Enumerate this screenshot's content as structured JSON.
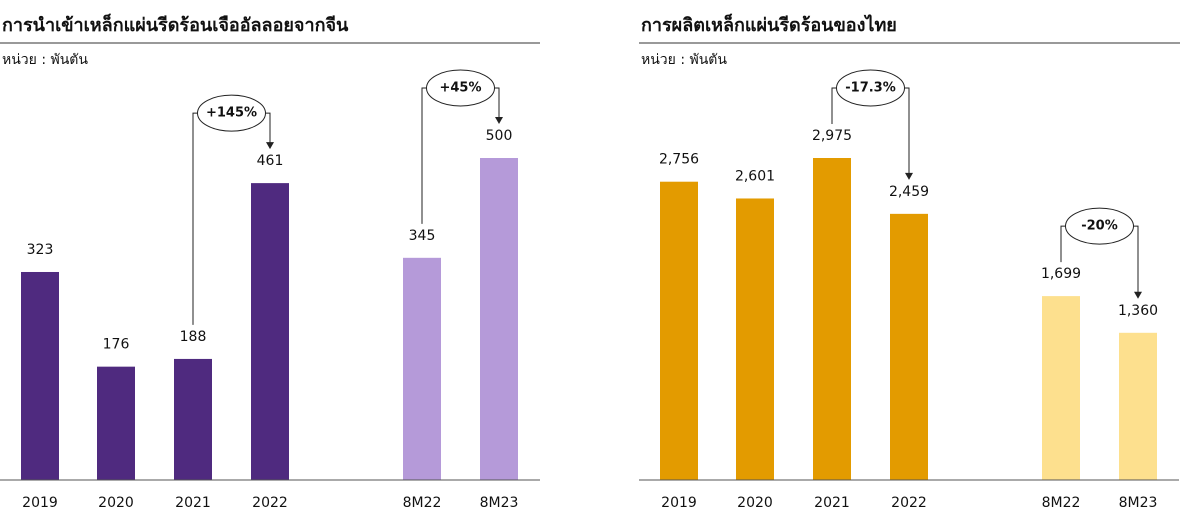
{
  "chart_data": [
    {
      "type": "bar",
      "title": "การนำเข้าเหล็กแผ่นรีดร้อนเจืออัลลอยจากจีน",
      "subtitle": "หน่วย : พันตัน",
      "categories": [
        "2019",
        "2020",
        "2021",
        "2022",
        "8M22",
        "8M23"
      ],
      "values": [
        323,
        176,
        188,
        461,
        345,
        500
      ],
      "colors": [
        "#4f2a7f",
        "#4f2a7f",
        "#4f2a7f",
        "#4f2a7f",
        "#b59ad9",
        "#b59ad9"
      ],
      "annotations": [
        "+145%",
        "+45%"
      ]
    },
    {
      "type": "bar",
      "title": "การผลิตเหล็กแผ่นรีดร้อนของไทย",
      "subtitle": "หน่วย : พันตัน",
      "categories": [
        "2019",
        "2020",
        "2021",
        "2022",
        "8M22",
        "8M23"
      ],
      "values": [
        2756,
        2601,
        2975,
        2459,
        1699,
        1360
      ],
      "value_labels": [
        "2,756",
        "2,601",
        "2,975",
        "2,459",
        "1,699",
        "1,360"
      ],
      "colors": [
        "#e39b00",
        "#e39b00",
        "#e39b00",
        "#e39b00",
        "#fde08e",
        "#fde08e"
      ],
      "annotations": [
        "-17.3%",
        "-20%"
      ]
    }
  ]
}
